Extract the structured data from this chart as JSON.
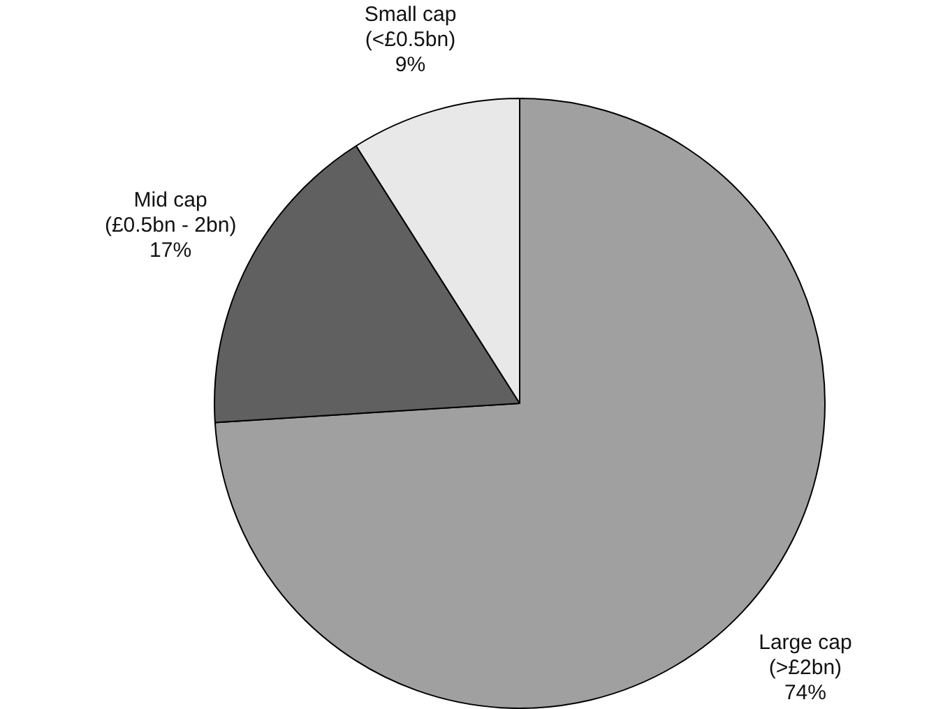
{
  "chart_data": {
    "type": "pie",
    "categories": [
      "Large cap\n(>£2bn)",
      "Mid cap\n(£0.5bn - 2bn)",
      "Small cap\n(<£0.5bn)"
    ],
    "values": [
      74,
      17,
      9
    ],
    "colors": [
      "#a0a0a0",
      "#606060",
      "#e8e8e8"
    ],
    "value_labels": [
      "74%",
      "17%",
      "9%"
    ],
    "legend": false
  }
}
